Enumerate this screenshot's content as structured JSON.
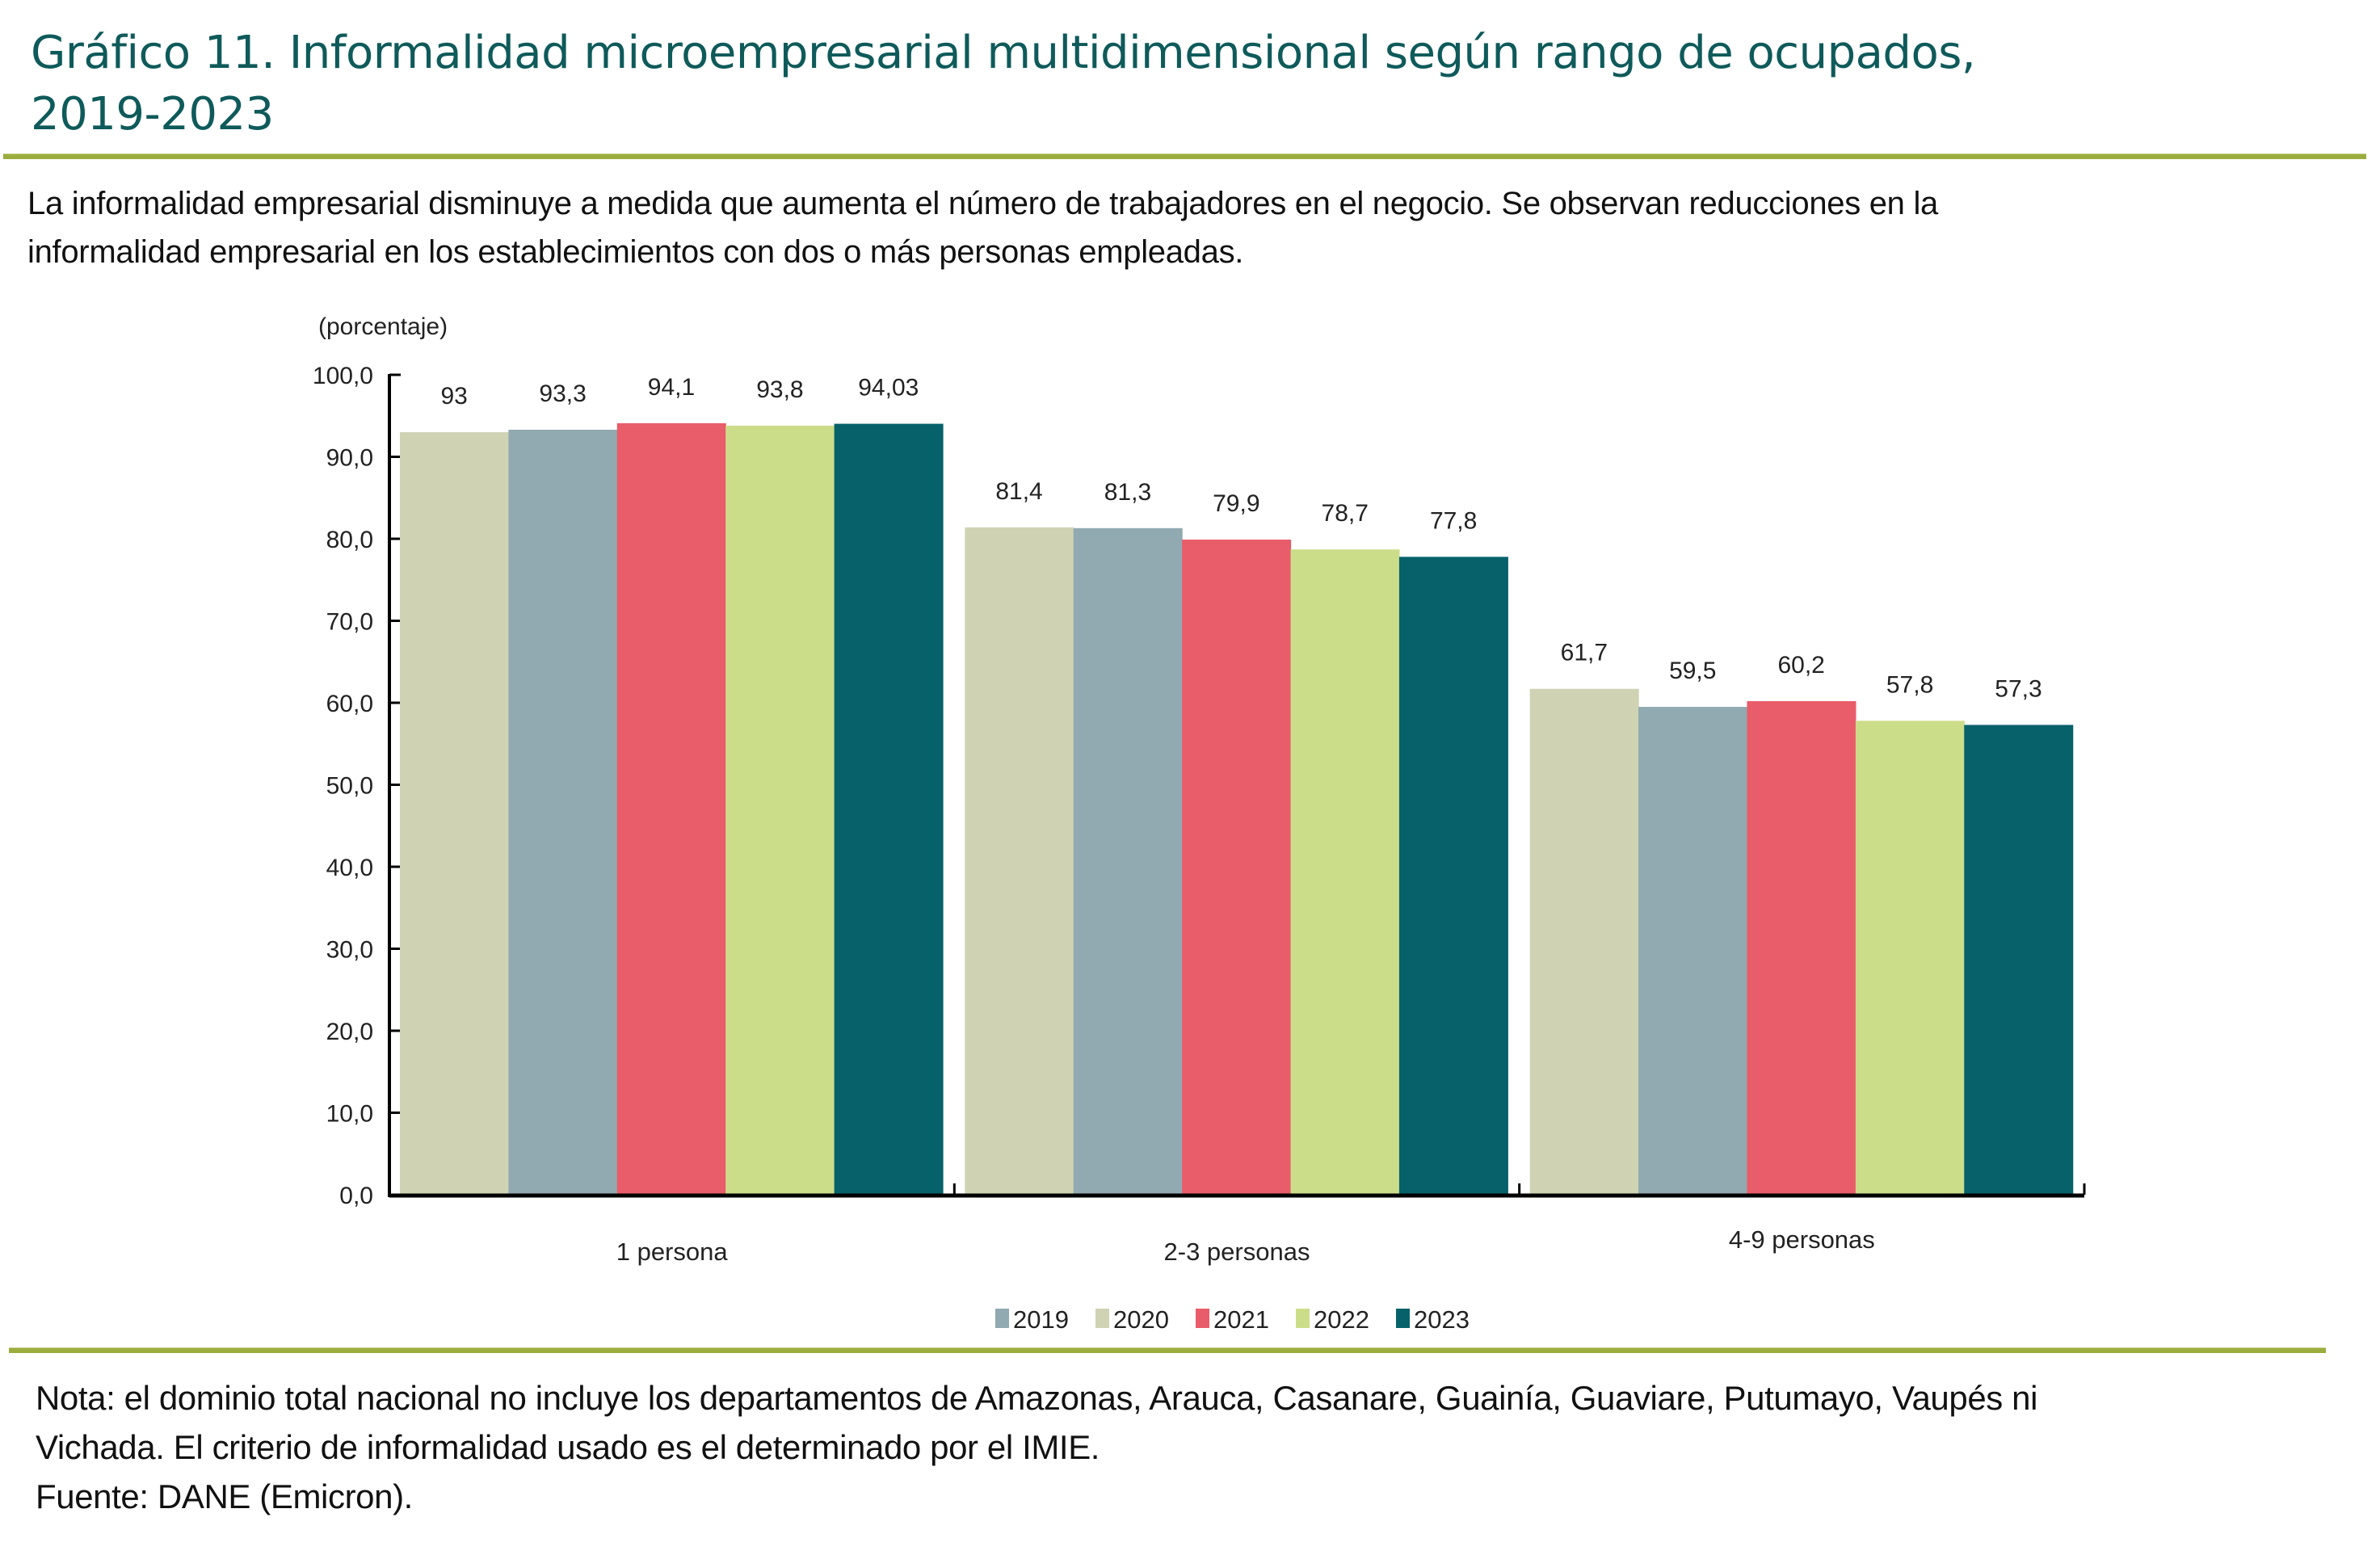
{
  "header": {
    "title_line1": "Gráfico 11. Informalidad microempresarial multidimensional según rango de ocupados,",
    "title_line2": "2019-2023",
    "subtitle_line1": "La informalidad empresarial disminuye a medida que aumenta el número de trabajadores en el negocio. Se observan reducciones en la",
    "subtitle_line2": "informalidad empresarial en los establecimientos con dos o más personas empleadas."
  },
  "footer": {
    "note_line1": "Nota: el dominio total nacional no incluye los departamentos de Amazonas, Arauca, Casanare, Guainía, Guaviare, Putumayo, Vaupés ni",
    "note_line2": "Vichada. El criterio de informalidad usado es el determinado por el IMIE.",
    "source": "Fuente: DANE (Emicron)."
  },
  "colors": {
    "title": "#0f5a5a",
    "rule": "#9cad3f",
    "axis": "#000000"
  },
  "chart_data": {
    "type": "bar",
    "title": "Informalidad microempresarial multidimensional según rango de ocupados, 2019-2023",
    "ylabel": "(porcentaje)",
    "xlabel": "",
    "ylim": [
      0,
      100
    ],
    "yticks": [
      "0,0",
      "10,0",
      "20,0",
      "30,0",
      "40,0",
      "50,0",
      "60,0",
      "70,0",
      "80,0",
      "90,0",
      "100,0"
    ],
    "ytick_values": [
      0,
      10,
      20,
      30,
      40,
      50,
      60,
      70,
      80,
      90,
      100
    ],
    "categories": [
      "1 persona",
      "2-3 personas",
      "4-9 personas"
    ],
    "grid": false,
    "legend_position": "bottom-center",
    "series": [
      {
        "name": "2019",
        "bar_color": "#cfd3b4",
        "legend_color": "#91a9b0",
        "values": [
          93,
          81.4,
          61.7
        ],
        "labels": [
          "93",
          "81,4",
          "61,7"
        ]
      },
      {
        "name": "2020",
        "bar_color": "#91a9b0",
        "legend_color": "#cfd3b4",
        "values": [
          93.3,
          81.3,
          59.5
        ],
        "labels": [
          "93,3",
          "81,3",
          "59,5"
        ]
      },
      {
        "name": "2021",
        "bar_color": "#e95c69",
        "legend_color": "#e95c69",
        "values": [
          94.1,
          79.9,
          60.2
        ],
        "labels": [
          "94,1",
          "79,9",
          "60,2"
        ]
      },
      {
        "name": "2022",
        "bar_color": "#ccdd8a",
        "legend_color": "#ccdd8a",
        "values": [
          93.8,
          78.7,
          57.8
        ],
        "labels": [
          "93,8",
          "78,7",
          "57,8"
        ]
      },
      {
        "name": "2023",
        "bar_color": "#06616a",
        "legend_color": "#06616a",
        "values": [
          94.03,
          77.8,
          57.3
        ],
        "labels": [
          "94,03",
          "77,8",
          "57,3"
        ]
      }
    ]
  }
}
